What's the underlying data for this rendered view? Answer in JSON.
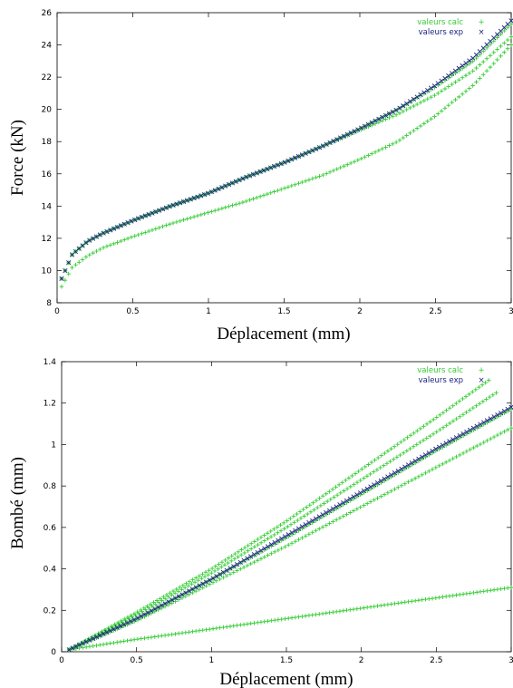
{
  "chart_data": [
    {
      "type": "scatter",
      "xlabel": "Déplacement (mm)",
      "ylabel": "Force (kN)",
      "xlim": [
        0,
        3
      ],
      "ylim": [
        8,
        26
      ],
      "xticks": [
        "0",
        "0.5",
        "1",
        "1.5",
        "2",
        "2.5",
        "3"
      ],
      "yticks": [
        "8",
        "10",
        "12",
        "14",
        "16",
        "18",
        "20",
        "22",
        "24",
        "26"
      ],
      "grid": false,
      "legend_position": "top-right",
      "legend": [
        {
          "label": "valeurs calc",
          "marker": "+",
          "color": "#33cc33"
        },
        {
          "label": "valeurs exp",
          "marker": "×",
          "color": "#1a237e"
        }
      ],
      "series": [
        {
          "name": "valeurs calc",
          "marker": "+",
          "color": "#33cc33",
          "curves": [
            {
              "x": [
                0.03,
                0.1,
                0.2,
                0.3,
                0.5,
                0.75,
                1.0,
                1.25,
                1.5,
                1.75,
                2.0,
                2.25,
                2.5,
                2.75,
                3.0
              ],
              "y": [
                9.0,
                10.2,
                10.9,
                11.4,
                12.1,
                12.9,
                13.6,
                14.3,
                15.1,
                15.9,
                16.9,
                18.0,
                19.6,
                21.5,
                24.0
              ]
            },
            {
              "x": [
                0.03,
                0.1,
                0.2,
                0.3,
                0.5,
                0.75,
                1.0,
                1.25,
                1.5,
                1.75,
                2.0,
                2.25,
                2.5,
                2.75,
                3.0
              ],
              "y": [
                9.5,
                11.0,
                11.8,
                12.3,
                13.1,
                14.0,
                14.8,
                15.8,
                16.7,
                17.7,
                18.8,
                20.0,
                21.4,
                23.0,
                25.3
              ]
            },
            {
              "x": [
                0.03,
                0.1,
                0.2,
                0.3,
                0.5,
                0.75,
                1.0,
                1.25,
                1.5,
                1.75,
                2.0,
                2.25,
                2.5,
                2.75,
                3.0
              ],
              "y": [
                9.5,
                11.0,
                11.8,
                12.3,
                13.1,
                14.0,
                14.8,
                15.8,
                16.7,
                17.7,
                18.7,
                19.7,
                20.9,
                22.4,
                24.5
              ]
            }
          ]
        },
        {
          "name": "valeurs exp",
          "marker": "×",
          "color": "#1a237e",
          "curves": [
            {
              "x": [
                0.03,
                0.1,
                0.2,
                0.3,
                0.5,
                0.75,
                1.0,
                1.25,
                1.5,
                1.75,
                2.0,
                2.25,
                2.5,
                2.75,
                3.0
              ],
              "y": [
                9.5,
                11.0,
                11.8,
                12.3,
                13.1,
                14.0,
                14.8,
                15.8,
                16.7,
                17.7,
                18.8,
                20.0,
                21.5,
                23.2,
                25.5
              ]
            }
          ]
        }
      ]
    },
    {
      "type": "scatter",
      "xlabel": "Déplacement (mm)",
      "ylabel": "Bombé (mm)",
      "xlim": [
        0,
        3
      ],
      "ylim": [
        0,
        1.4
      ],
      "xticks": [
        "0",
        "0.5",
        "1",
        "1.5",
        "2",
        "2.5",
        "3"
      ],
      "yticks": [
        "0",
        "0.2",
        "0.4",
        "0.6",
        "0.8",
        "1",
        "1.2",
        "1.4"
      ],
      "grid": false,
      "legend_position": "top-right",
      "legend": [
        {
          "label": "valeurs calc",
          "marker": "+",
          "color": "#33cc33"
        },
        {
          "label": "valeurs exp",
          "marker": "×",
          "color": "#1a237e"
        }
      ],
      "series": [
        {
          "name": "valeurs calc",
          "marker": "+",
          "color": "#33cc33",
          "curves": [
            {
              "x": [
                0.05,
                0.5,
                1.0,
                1.5,
                2.0,
                2.5,
                3.0
              ],
              "y": [
                0.01,
                0.06,
                0.11,
                0.16,
                0.21,
                0.26,
                0.31
              ]
            },
            {
              "x": [
                0.05,
                0.5,
                1.0,
                1.5,
                2.0,
                2.5,
                2.85
              ],
              "y": [
                0.01,
                0.19,
                0.4,
                0.63,
                0.88,
                1.13,
                1.31
              ]
            },
            {
              "x": [
                0.05,
                0.5,
                1.0,
                1.5,
                2.0,
                2.5,
                2.9
              ],
              "y": [
                0.01,
                0.18,
                0.38,
                0.6,
                0.83,
                1.06,
                1.25
              ]
            },
            {
              "x": [
                0.05,
                0.5,
                1.0,
                1.5,
                2.0,
                2.5,
                3.0
              ],
              "y": [
                0.01,
                0.16,
                0.35,
                0.55,
                0.76,
                0.97,
                1.17
              ]
            },
            {
              "x": [
                0.05,
                0.5,
                1.0,
                1.5,
                2.0,
                2.5,
                3.0
              ],
              "y": [
                0.01,
                0.15,
                0.33,
                0.51,
                0.7,
                0.89,
                1.08
              ]
            }
          ]
        },
        {
          "name": "valeurs exp",
          "marker": "×",
          "color": "#1a237e",
          "curves": [
            {
              "x": [
                0.05,
                0.5,
                1.0,
                1.5,
                2.0,
                2.5,
                3.0
              ],
              "y": [
                0.01,
                0.16,
                0.35,
                0.56,
                0.77,
                0.98,
                1.18
              ]
            }
          ]
        }
      ]
    }
  ]
}
